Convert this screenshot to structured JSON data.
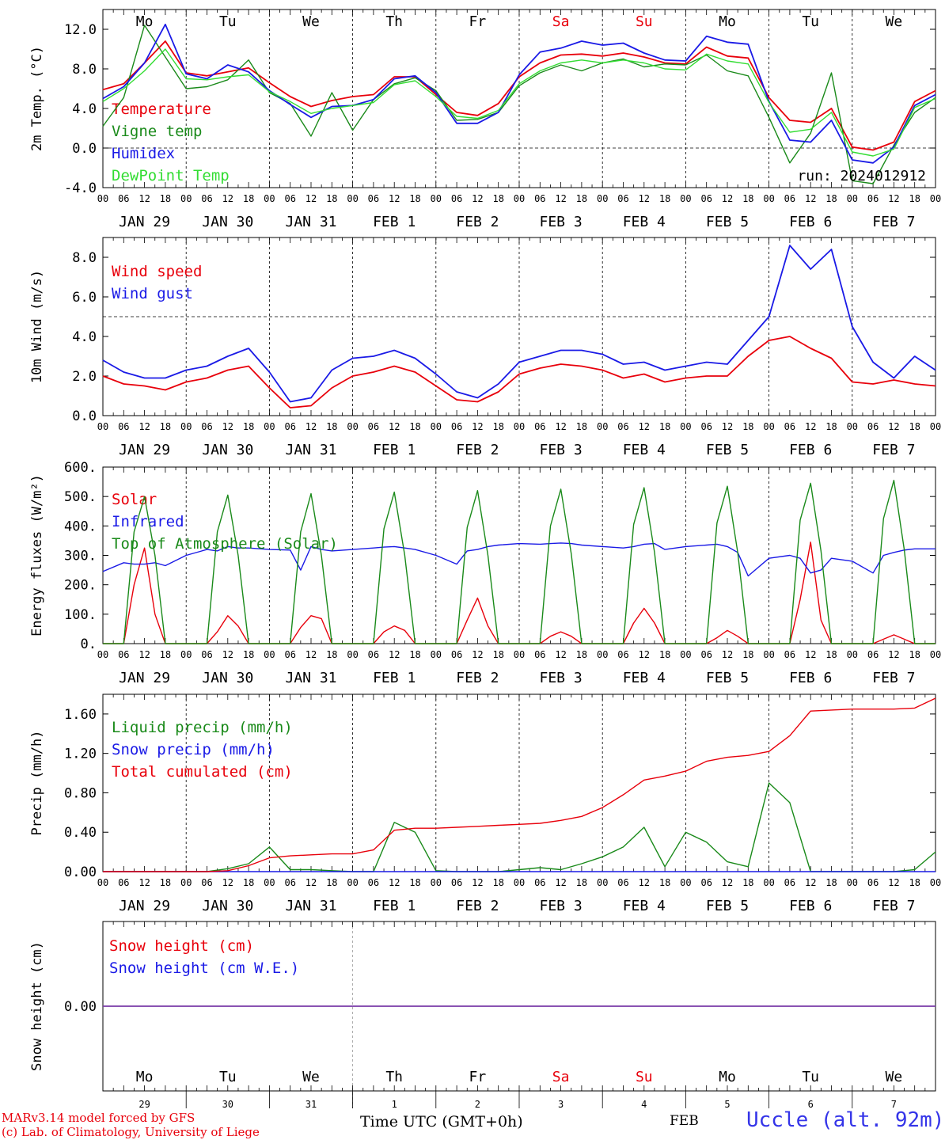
{
  "footer": {
    "model": "MARv3.14 model forced by GFS",
    "copyright": "(c) Lab. of Climatology, University of Liege",
    "time_label": "Time UTC (GMT+0h)",
    "month_label": "FEB",
    "station": "Uccle (alt. 92m)",
    "station_color": "#3434e8"
  },
  "colors": {
    "red": "#e8000b",
    "green": "#1a8a1a",
    "blue": "#1a1ae6",
    "lightgreen": "#33dd33",
    "purple": "#7a3aa8"
  },
  "days": {
    "weekday": [
      "Mo",
      "Tu",
      "We",
      "Th",
      "Fr",
      "Sa",
      "Su",
      "Mo",
      "Tu",
      "We"
    ],
    "weekday_red": [
      false,
      false,
      false,
      false,
      false,
      true,
      true,
      false,
      false,
      false
    ],
    "date_labels": [
      "JAN 29",
      "JAN 30",
      "JAN 31",
      "FEB 1",
      "FEB 2",
      "FEB 3",
      "FEB 4",
      "FEB 5",
      "FEB 6",
      "FEB 7"
    ],
    "day_numbers": [
      "29",
      "30",
      "31",
      "1",
      "2",
      "3",
      "4",
      "5",
      "6",
      "7"
    ],
    "hour_ticks": [
      "00",
      "06",
      "12",
      "18"
    ],
    "final_tick": "00"
  },
  "chart_data": [
    {
      "type": "line",
      "ylabel": "2m Temp. (°C)",
      "ylim": [
        -4,
        14
      ],
      "yticks": [
        "-4.0",
        "0.0",
        "4.0",
        "8.0",
        "12.0"
      ],
      "ytick_values": [
        -4,
        0,
        4,
        8,
        12
      ],
      "dashed_y": 0,
      "show_weekdays": true,
      "run_label": "run: 2024012912",
      "x_hours": [
        0,
        6,
        12,
        18,
        24,
        30,
        36,
        42,
        48,
        54,
        60,
        66,
        72,
        78,
        84,
        90,
        96,
        102,
        108,
        114,
        120,
        126,
        132,
        138,
        144,
        150,
        156,
        162,
        168,
        174,
        180,
        186,
        192,
        198,
        204,
        210,
        216,
        222,
        228,
        234,
        240
      ],
      "series": [
        {
          "name": "Temperature",
          "color": "red",
          "values": [
            5.9,
            6.5,
            8.6,
            10.8,
            7.6,
            7.3,
            7.7,
            8.1,
            6.6,
            5.2,
            4.2,
            4.8,
            5.2,
            5.4,
            7.2,
            7.2,
            5.4,
            3.6,
            3.3,
            4.5,
            7.2,
            8.6,
            9.4,
            9.5,
            9.3,
            9.6,
            9.2,
            8.6,
            8.5,
            10.2,
            9.3,
            9.1,
            5.1,
            2.8,
            2.6,
            4.0,
            0.1,
            -0.2,
            0.6,
            4.7,
            5.8
          ]
        },
        {
          "name": "Vigne temp",
          "color": "green",
          "values": [
            2.2,
            5.1,
            12.4,
            9.2,
            6.0,
            6.2,
            6.9,
            8.9,
            5.6,
            4.5,
            1.2,
            5.6,
            1.8,
            4.9,
            6.5,
            7.1,
            5.8,
            2.8,
            2.9,
            3.6,
            6.3,
            7.6,
            8.4,
            7.8,
            8.6,
            9.0,
            8.2,
            8.5,
            8.4,
            9.4,
            7.8,
            7.3,
            3.1,
            -1.5,
            1.5,
            7.6,
            -3.3,
            -3.6,
            0.3,
            3.6,
            5.1
          ]
        },
        {
          "name": "Humidex",
          "color": "blue",
          "values": [
            5.0,
            6.2,
            8.6,
            12.5,
            7.5,
            7.0,
            8.4,
            7.7,
            5.8,
            4.4,
            3.1,
            4.2,
            4.3,
            4.9,
            7.0,
            7.3,
            5.6,
            2.5,
            2.5,
            3.6,
            7.4,
            9.7,
            10.1,
            10.8,
            10.4,
            10.6,
            9.6,
            8.9,
            8.8,
            11.3,
            10.7,
            10.5,
            4.7,
            0.8,
            0.6,
            2.8,
            -1.2,
            -1.5,
            0.1,
            4.3,
            5.4
          ]
        },
        {
          "name": "DewPoint Temp",
          "color": "lightgreen",
          "values": [
            4.7,
            6.0,
            7.8,
            10.0,
            7.0,
            6.9,
            7.2,
            7.4,
            5.7,
            4.7,
            3.5,
            4.0,
            4.3,
            4.6,
            6.4,
            6.8,
            5.2,
            3.2,
            3.0,
            3.8,
            6.5,
            7.8,
            8.6,
            8.9,
            8.6,
            8.9,
            8.6,
            8.0,
            7.9,
            9.5,
            8.8,
            8.5,
            4.6,
            1.6,
            1.9,
            3.6,
            -0.4,
            -0.8,
            -0.1,
            4.1,
            5.0
          ]
        }
      ]
    },
    {
      "type": "line",
      "ylabel": "10m Wind (m/s)",
      "ylim": [
        0,
        9
      ],
      "yticks": [
        "0.0",
        "2.0",
        "4.0",
        "6.0",
        "8.0"
      ],
      "ytick_values": [
        0,
        2,
        4,
        6,
        8
      ],
      "dashed_y": 5,
      "x_hours": [
        0,
        6,
        12,
        18,
        24,
        30,
        36,
        42,
        48,
        54,
        60,
        66,
        72,
        78,
        84,
        90,
        96,
        102,
        108,
        114,
        120,
        126,
        132,
        138,
        144,
        150,
        156,
        162,
        168,
        174,
        180,
        186,
        192,
        198,
        204,
        210,
        216,
        222,
        228,
        234,
        240
      ],
      "series": [
        {
          "name": "Wind speed",
          "color": "red",
          "values": [
            2.0,
            1.6,
            1.5,
            1.3,
            1.7,
            1.9,
            2.3,
            2.5,
            1.4,
            0.4,
            0.5,
            1.4,
            2.0,
            2.2,
            2.5,
            2.2,
            1.5,
            0.8,
            0.7,
            1.2,
            2.1,
            2.4,
            2.6,
            2.5,
            2.3,
            1.9,
            2.1,
            1.7,
            1.9,
            2.0,
            2.0,
            3.0,
            3.8,
            4.0,
            3.4,
            2.9,
            1.7,
            1.6,
            1.8,
            1.6,
            1.5
          ]
        },
        {
          "name": "Wind gust",
          "color": "blue",
          "values": [
            2.8,
            2.2,
            1.9,
            1.9,
            2.3,
            2.5,
            3.0,
            3.4,
            2.2,
            0.7,
            0.9,
            2.3,
            2.9,
            3.0,
            3.3,
            2.9,
            2.1,
            1.2,
            0.9,
            1.6,
            2.7,
            3.0,
            3.3,
            3.3,
            3.1,
            2.6,
            2.7,
            2.3,
            2.5,
            2.7,
            2.6,
            3.8,
            5.0,
            8.6,
            7.4,
            8.4,
            4.5,
            2.7,
            1.9,
            3.0,
            2.3
          ]
        }
      ]
    },
    {
      "type": "line",
      "ylabel": "Energy fluxes (W/m²)",
      "ylim": [
        0,
        600
      ],
      "yticks": [
        "0.",
        "100.",
        "200.",
        "300.",
        "400.",
        "500.",
        "600."
      ],
      "ytick_values": [
        0,
        100,
        200,
        300,
        400,
        500,
        600
      ],
      "x_hours": [
        0,
        6,
        9,
        12,
        15,
        18,
        24,
        30,
        33,
        36,
        39,
        42,
        48,
        54,
        57,
        60,
        63,
        66,
        72,
        78,
        81,
        84,
        87,
        90,
        96,
        102,
        105,
        108,
        111,
        114,
        120,
        126,
        129,
        132,
        135,
        138,
        144,
        150,
        153,
        156,
        159,
        162,
        168,
        174,
        177,
        180,
        183,
        186,
        192,
        198,
        201,
        204,
        207,
        210,
        216,
        222,
        225,
        228,
        231,
        234,
        240
      ],
      "series": [
        {
          "name": "Solar",
          "color": "red",
          "values": [
            0,
            0,
            200,
            325,
            100,
            0,
            0,
            0,
            40,
            95,
            60,
            0,
            0,
            0,
            55,
            95,
            85,
            0,
            0,
            0,
            40,
            60,
            45,
            0,
            0,
            0,
            80,
            155,
            60,
            0,
            0,
            0,
            25,
            40,
            25,
            0,
            0,
            0,
            70,
            120,
            70,
            0,
            0,
            0,
            20,
            45,
            25,
            0,
            0,
            0,
            150,
            345,
            80,
            0,
            0,
            0,
            15,
            30,
            15,
            0,
            0
          ]
        },
        {
          "name": "Infrared",
          "color": "blue",
          "values": [
            245,
            275,
            270,
            270,
            275,
            265,
            300,
            320,
            315,
            330,
            325,
            325,
            320,
            318,
            250,
            330,
            320,
            315,
            320,
            325,
            328,
            330,
            325,
            320,
            300,
            270,
            315,
            320,
            330,
            335,
            340,
            338,
            340,
            342,
            340,
            335,
            330,
            325,
            330,
            338,
            340,
            320,
            330,
            335,
            338,
            330,
            310,
            230,
            290,
            300,
            290,
            240,
            250,
            290,
            280,
            240,
            300,
            310,
            318,
            322,
            322
          ]
        },
        {
          "name": "Top of Atmosphere (Solar)",
          "color": "green",
          "values": [
            0,
            0,
            380,
            500,
            300,
            0,
            0,
            0,
            380,
            505,
            300,
            0,
            0,
            0,
            380,
            510,
            300,
            0,
            0,
            0,
            390,
            515,
            300,
            0,
            0,
            0,
            395,
            520,
            300,
            0,
            0,
            0,
            400,
            525,
            305,
            0,
            0,
            0,
            405,
            530,
            310,
            0,
            0,
            0,
            410,
            535,
            310,
            0,
            0,
            0,
            420,
            545,
            315,
            0,
            0,
            0,
            425,
            555,
            320,
            0,
            0
          ]
        }
      ]
    },
    {
      "type": "line",
      "ylabel": "Precip (mm/h)",
      "ylim": [
        0,
        1.8
      ],
      "yticks": [
        "0.00",
        "0.40",
        "0.80",
        "1.20",
        "1.60"
      ],
      "ytick_values": [
        0,
        0.4,
        0.8,
        1.2,
        1.6
      ],
      "x_hours": [
        0,
        6,
        12,
        18,
        24,
        30,
        36,
        42,
        48,
        54,
        60,
        66,
        72,
        78,
        84,
        90,
        96,
        102,
        108,
        114,
        120,
        126,
        132,
        138,
        144,
        150,
        156,
        162,
        168,
        174,
        180,
        186,
        192,
        198,
        204,
        210,
        216,
        222,
        228,
        234,
        240
      ],
      "series": [
        {
          "name": "Liquid precip (mm/h)",
          "color": "green",
          "values": [
            0,
            0,
            0,
            0,
            0,
            0,
            0.03,
            0.08,
            0.25,
            0.02,
            0.02,
            0.01,
            0,
            0,
            0.5,
            0.4,
            0.01,
            0,
            0,
            0,
            0.02,
            0.04,
            0.02,
            0.08,
            0.15,
            0.25,
            0.45,
            0.05,
            0.4,
            0.3,
            0.1,
            0.05,
            0.9,
            0.7,
            0,
            0,
            0,
            0,
            0,
            0.02,
            0.2
          ]
        },
        {
          "name": "Snow precip (mm/h)",
          "color": "blue",
          "values": [
            0,
            0,
            0,
            0,
            0,
            0,
            0,
            0,
            0,
            0,
            0,
            0,
            0,
            0,
            0,
            0,
            0,
            0,
            0,
            0,
            0,
            0,
            0,
            0,
            0,
            0,
            0,
            0,
            0,
            0,
            0,
            0,
            0,
            0,
            0,
            0,
            0,
            0,
            0,
            0,
            0
          ]
        },
        {
          "name": "Total cumulated (cm)",
          "color": "red",
          "values": [
            0,
            0,
            0,
            0,
            0,
            0,
            0.01,
            0.06,
            0.14,
            0.16,
            0.17,
            0.18,
            0.18,
            0.22,
            0.42,
            0.44,
            0.44,
            0.45,
            0.46,
            0.47,
            0.48,
            0.49,
            0.52,
            0.56,
            0.65,
            0.78,
            0.93,
            0.97,
            1.02,
            1.12,
            1.16,
            1.18,
            1.22,
            1.38,
            1.63,
            1.64,
            1.65,
            1.65,
            1.65,
            1.66,
            1.76
          ]
        }
      ]
    },
    {
      "type": "line",
      "ylabel": "Snow height (cm)",
      "ylim": [
        -1,
        1
      ],
      "yticks": [
        "0.00"
      ],
      "ytick_values": [
        0
      ],
      "x_hours": [
        0,
        240
      ],
      "bottom_labels": true,
      "series": [
        {
          "name": "Snow height (cm)",
          "color": "red",
          "values": [
            0,
            0
          ]
        },
        {
          "name": "Snow height (cm W.E.)",
          "color": "blue",
          "values": [
            0,
            0
          ]
        }
      ]
    }
  ]
}
